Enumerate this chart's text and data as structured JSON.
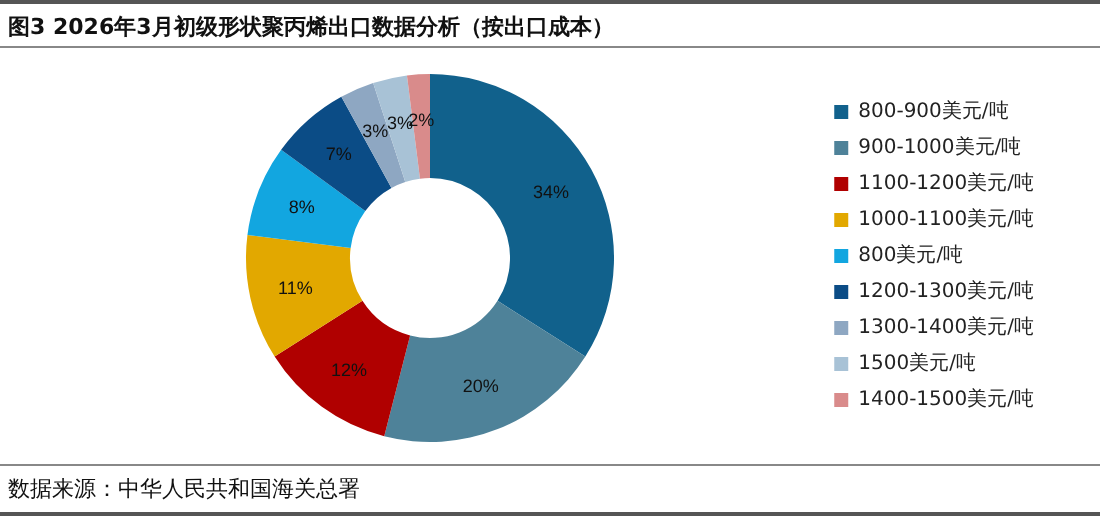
{
  "chart_data": {
    "type": "donut",
    "title": "图3  2026年3月初级形状聚丙烯出口数据分析（按出口成本）",
    "categories": [
      "800-900美元/吨",
      "900-1000美元/吨",
      "1100-1200美元/吨",
      "1000-1100美元/吨",
      "800美元/吨",
      "1200-1300美元/吨",
      "1300-1400美元/吨",
      "1500美元/吨",
      "1400-1500美元/吨"
    ],
    "values": [
      34,
      20,
      12,
      11,
      8,
      7,
      3,
      3,
      2
    ],
    "value_labels": [
      "34%",
      "20%",
      "12%",
      "11%",
      "8%",
      "7%",
      "3%",
      "3%",
      "2%"
    ],
    "colors": [
      "#11618c",
      "#4e8299",
      "#b00000",
      "#e2a800",
      "#12a6e0",
      "#0b4c86",
      "#8ea7c2",
      "#a8c2d6",
      "#d98b8b"
    ],
    "legend": "right",
    "annotations": [
      "数据来源：中华人民共和国海关总署"
    ]
  }
}
